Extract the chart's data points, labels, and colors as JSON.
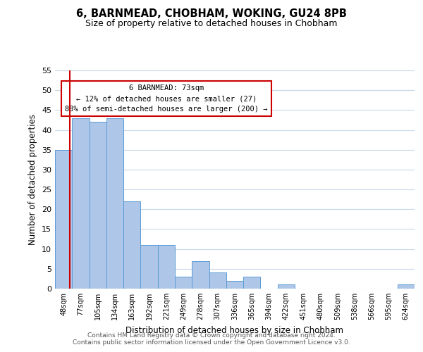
{
  "title": "6, BARNMEAD, CHOBHAM, WOKING, GU24 8PB",
  "subtitle": "Size of property relative to detached houses in Chobham",
  "xlabel": "Distribution of detached houses by size in Chobham",
  "ylabel": "Number of detached properties",
  "bin_labels": [
    "48sqm",
    "77sqm",
    "105sqm",
    "134sqm",
    "163sqm",
    "192sqm",
    "221sqm",
    "249sqm",
    "278sqm",
    "307sqm",
    "336sqm",
    "365sqm",
    "394sqm",
    "422sqm",
    "451sqm",
    "480sqm",
    "509sqm",
    "538sqm",
    "566sqm",
    "595sqm",
    "624sqm"
  ],
  "bar_heights": [
    35,
    43,
    42,
    43,
    22,
    11,
    11,
    3,
    7,
    4,
    2,
    3,
    0,
    1,
    0,
    0,
    0,
    0,
    0,
    0,
    1
  ],
  "bar_color": "#aec6e8",
  "bar_edge_color": "#5b9bd5",
  "highlight_line_color": "#cc0000",
  "ylim": [
    0,
    55
  ],
  "yticks": [
    0,
    5,
    10,
    15,
    20,
    25,
    30,
    35,
    40,
    45,
    50,
    55
  ],
  "annotation_line1": "6 BARNMEAD: 73sqm",
  "annotation_line2": "← 12% of detached houses are smaller (27)",
  "annotation_line3": "88% of semi-detached houses are larger (200) →",
  "footer_line1": "Contains HM Land Registry data © Crown copyright and database right 2024.",
  "footer_line2": "Contains public sector information licensed under the Open Government Licence v3.0.",
  "background_color": "#ffffff",
  "grid_color": "#c8d8e8"
}
